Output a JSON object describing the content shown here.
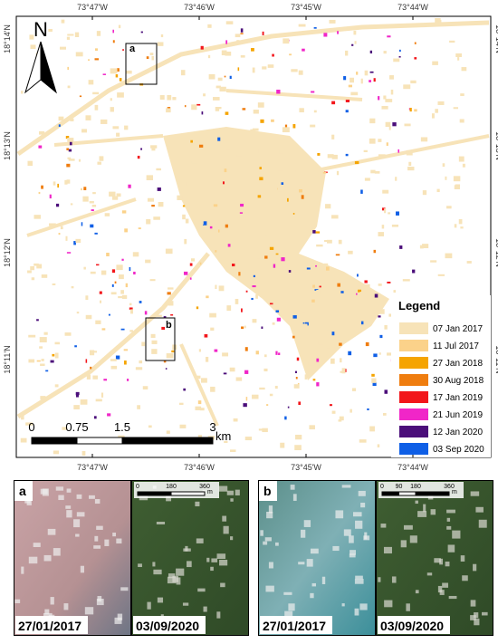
{
  "map": {
    "north": "N",
    "lon_labels": [
      "73°47'W",
      "73°46'W",
      "73°45'W",
      "73°44'W"
    ],
    "lat_labels": [
      "18°14'N",
      "18°13'N",
      "18°12'N",
      "18°11'N"
    ],
    "zoom_boxes": [
      "a",
      "b"
    ],
    "scale": {
      "ticks": [
        0,
        0.75,
        1.5,
        3
      ],
      "unit": "km"
    },
    "legend": {
      "title": "Legend",
      "items": [
        {
          "label": "07 Jan 2017",
          "color": "#f7e3b8"
        },
        {
          "label": "11 Jul 2017",
          "color": "#fbd28a"
        },
        {
          "label": "27 Jan 2018",
          "color": "#f5a400"
        },
        {
          "label": "30 Aug 2018",
          "color": "#ef7d0f"
        },
        {
          "label": "17 Jan 2019",
          "color": "#f2161b"
        },
        {
          "label": "21 Jun 2019",
          "color": "#f026c8"
        },
        {
          "label": "12 Jan 2020",
          "color": "#4b0e7a"
        },
        {
          "label": "03 Sep 2020",
          "color": "#0f5fe6"
        }
      ]
    }
  },
  "insets": [
    {
      "label": "a",
      "scale": {
        "ticks": [
          0,
          180,
          360
        ],
        "unit": "m"
      },
      "images": [
        {
          "date": "27/01/2017"
        },
        {
          "date": "03/09/2020"
        }
      ]
    },
    {
      "label": "b",
      "scale": {
        "ticks": [
          0,
          90,
          180,
          360
        ],
        "unit": "m"
      },
      "images": [
        {
          "date": "27/01/2017"
        },
        {
          "date": "03/09/2020"
        }
      ]
    }
  ]
}
